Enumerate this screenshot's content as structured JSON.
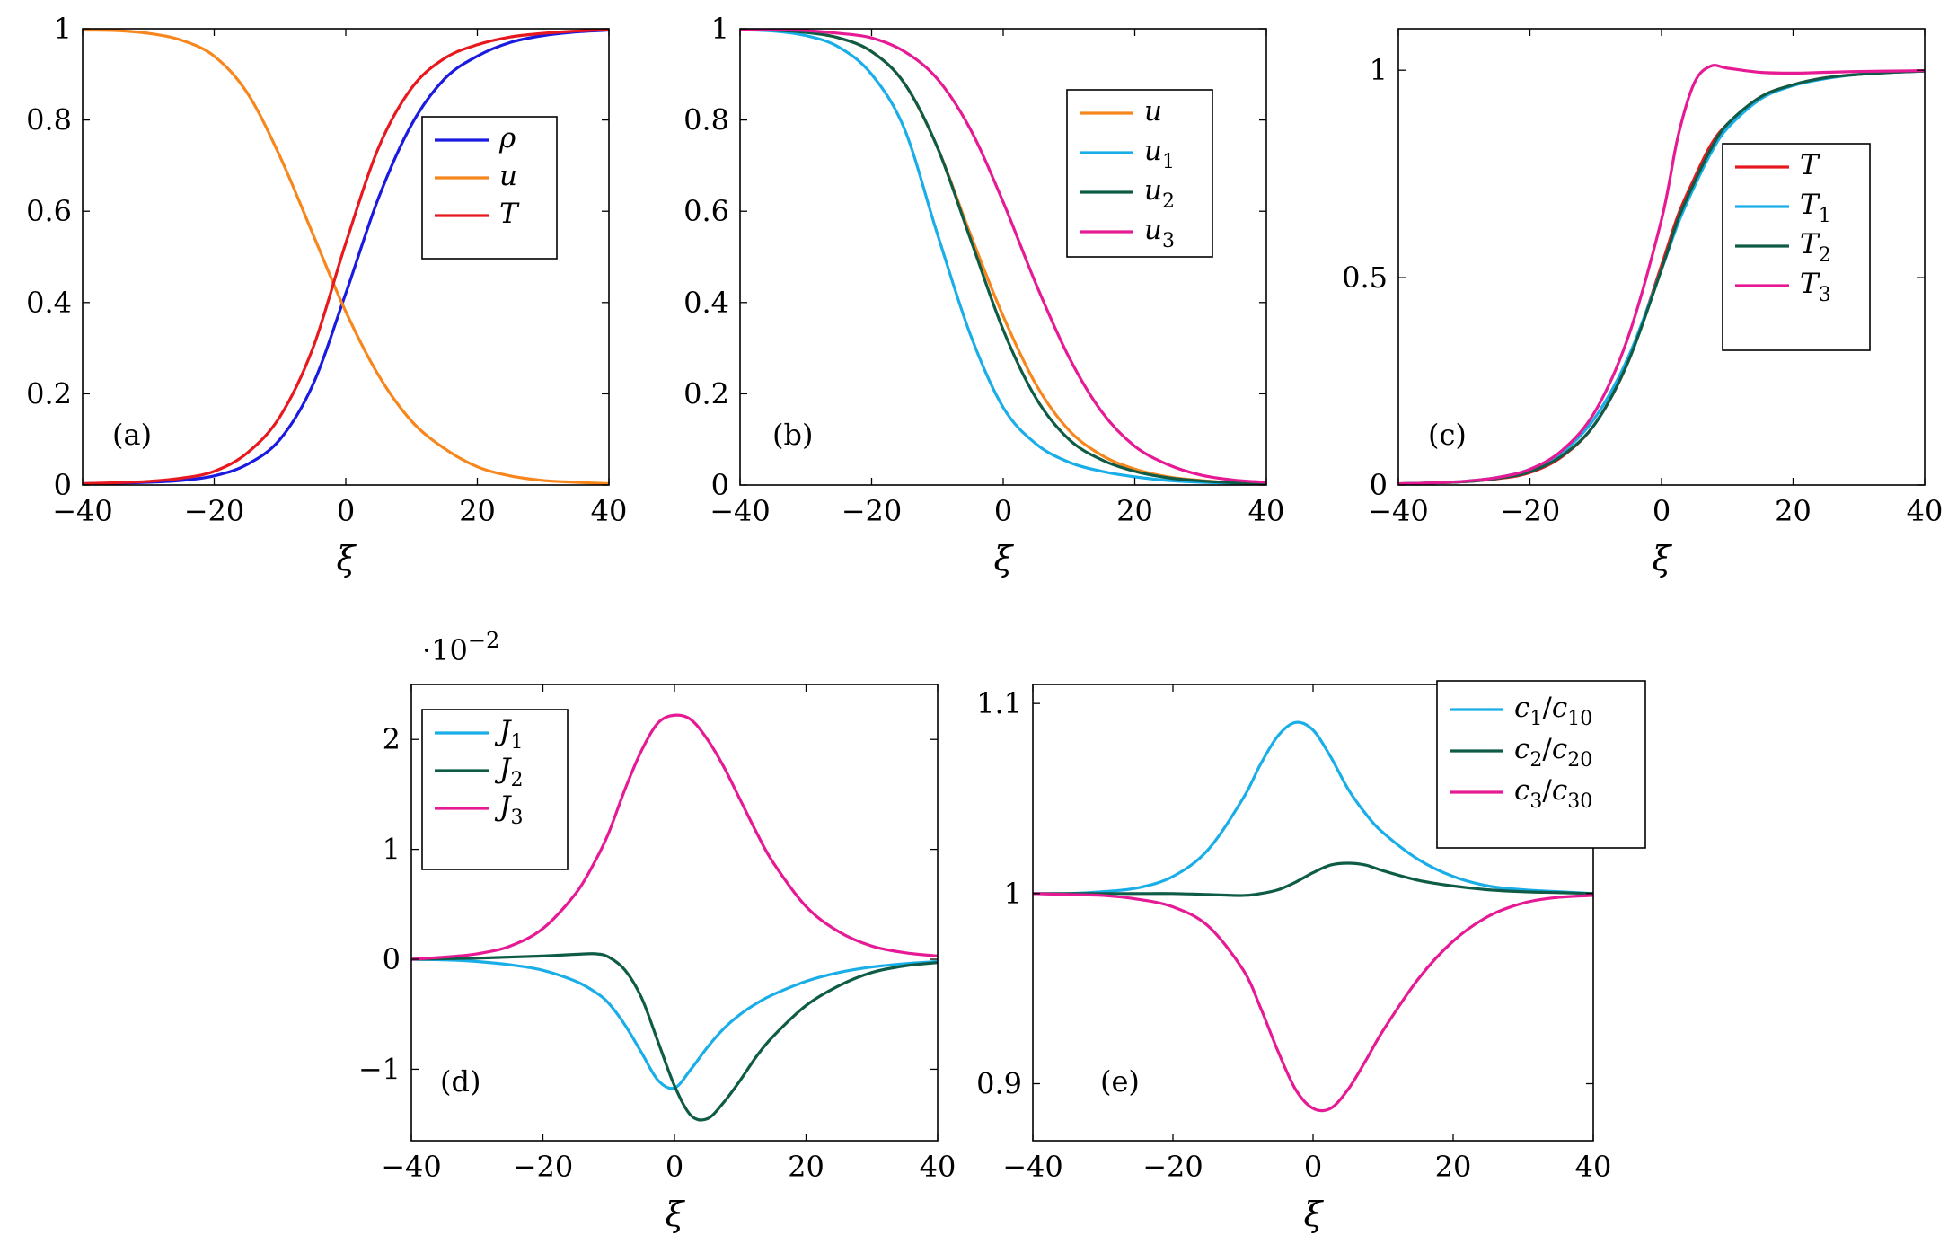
{
  "chart_data": [
    {
      "id": "a",
      "type": "line",
      "tag": "(a)",
      "xlabel": "ξ",
      "xlim": [
        -40,
        40
      ],
      "ylim": [
        0,
        1
      ],
      "xticks": [
        -40,
        -20,
        0,
        20,
        40
      ],
      "xtick_labels": [
        "−40",
        "−20",
        "0",
        "20",
        "40"
      ],
      "yticks": [
        0,
        0.2,
        0.4,
        0.6,
        0.8,
        1
      ],
      "ytick_labels": [
        "0",
        "0.2",
        "0.4",
        "0.6",
        "0.8",
        "1"
      ],
      "legend_position": "center-right",
      "x": [
        -40,
        -35,
        -30,
        -25,
        -20,
        -15,
        -10,
        -5,
        0,
        5,
        10,
        15,
        20,
        25,
        30,
        35,
        40
      ],
      "series": [
        {
          "name": "ρ",
          "sub": "",
          "color": "#1a1ae0",
          "values": [
            0.003,
            0.004,
            0.006,
            0.01,
            0.02,
            0.045,
            0.1,
            0.22,
            0.42,
            0.63,
            0.79,
            0.89,
            0.94,
            0.97,
            0.985,
            0.993,
            0.997
          ]
        },
        {
          "name": "u",
          "sub": "",
          "color": "#f7861c",
          "values": [
            0.997,
            0.996,
            0.99,
            0.975,
            0.94,
            0.86,
            0.72,
            0.55,
            0.38,
            0.24,
            0.14,
            0.08,
            0.04,
            0.02,
            0.01,
            0.006,
            0.003
          ]
        },
        {
          "name": "T",
          "sub": "",
          "color": "#e8191e",
          "values": [
            0.003,
            0.005,
            0.008,
            0.015,
            0.03,
            0.07,
            0.15,
            0.3,
            0.53,
            0.74,
            0.87,
            0.935,
            0.965,
            0.982,
            0.99,
            0.995,
            0.998
          ]
        }
      ]
    },
    {
      "id": "b",
      "type": "line",
      "tag": "(b)",
      "xlabel": "ξ",
      "xlim": [
        -40,
        40
      ],
      "ylim": [
        0,
        1
      ],
      "xticks": [
        -40,
        -20,
        0,
        20,
        40
      ],
      "xtick_labels": [
        "−40",
        "−20",
        "0",
        "20",
        "40"
      ],
      "yticks": [
        0,
        0.2,
        0.4,
        0.6,
        0.8,
        1
      ],
      "ytick_labels": [
        "0",
        "0.2",
        "0.4",
        "0.6",
        "0.8",
        "1"
      ],
      "legend_position": "top-right",
      "x": [
        -40,
        -35,
        -30,
        -25,
        -20,
        -15,
        -10,
        -5,
        0,
        5,
        10,
        15,
        20,
        25,
        30,
        35,
        40
      ],
      "series": [
        {
          "name": "u",
          "sub": "",
          "color": "#f7861c",
          "values": [
            0.998,
            0.997,
            0.993,
            0.98,
            0.95,
            0.88,
            0.74,
            0.55,
            0.37,
            0.22,
            0.12,
            0.065,
            0.035,
            0.018,
            0.01,
            0.005,
            0.003
          ]
        },
        {
          "name": "u",
          "sub": "1",
          "color": "#1aaee8",
          "values": [
            0.998,
            0.995,
            0.985,
            0.96,
            0.9,
            0.78,
            0.55,
            0.33,
            0.17,
            0.09,
            0.05,
            0.03,
            0.018,
            0.01,
            0.006,
            0.004,
            0.002
          ]
        },
        {
          "name": "u",
          "sub": "2",
          "color": "#0f5c46",
          "values": [
            0.998,
            0.997,
            0.992,
            0.98,
            0.95,
            0.88,
            0.74,
            0.54,
            0.34,
            0.19,
            0.1,
            0.055,
            0.03,
            0.016,
            0.009,
            0.005,
            0.003
          ]
        },
        {
          "name": "u",
          "sub": "3",
          "color": "#e61a94",
          "values": [
            0.999,
            0.998,
            0.996,
            0.99,
            0.98,
            0.95,
            0.89,
            0.78,
            0.62,
            0.44,
            0.28,
            0.16,
            0.085,
            0.045,
            0.022,
            0.011,
            0.006
          ]
        }
      ]
    },
    {
      "id": "c",
      "type": "line",
      "tag": "(c)",
      "xlabel": "ξ",
      "xlim": [
        -40,
        40
      ],
      "ylim": [
        0,
        1.1
      ],
      "xticks": [
        -40,
        -20,
        0,
        20,
        40
      ],
      "xtick_labels": [
        "−40",
        "−20",
        "0",
        "20",
        "40"
      ],
      "yticks": [
        0,
        0.5,
        1
      ],
      "ytick_labels": [
        "0",
        "0.5",
        "1"
      ],
      "legend_position": "center-right",
      "x": [
        -40,
        -35,
        -30,
        -25,
        -20,
        -15,
        -10,
        -5,
        0,
        2.5,
        5,
        7.5,
        10,
        15,
        20,
        25,
        30,
        35,
        40
      ],
      "series": [
        {
          "name": "T",
          "sub": "",
          "color": "#e8191e",
          "values": [
            0.003,
            0.005,
            0.008,
            0.015,
            0.03,
            0.07,
            0.15,
            0.3,
            0.53,
            0.65,
            0.74,
            0.82,
            0.87,
            0.935,
            0.965,
            0.982,
            0.99,
            0.995,
            0.998
          ]
        },
        {
          "name": "T",
          "sub": "1",
          "color": "#1aaee8",
          "values": [
            0.003,
            0.005,
            0.009,
            0.018,
            0.038,
            0.08,
            0.165,
            0.31,
            0.52,
            0.63,
            0.72,
            0.8,
            0.86,
            0.93,
            0.963,
            0.98,
            0.99,
            0.995,
            0.998
          ]
        },
        {
          "name": "T",
          "sub": "2",
          "color": "#0f5c46",
          "values": [
            0.003,
            0.005,
            0.008,
            0.016,
            0.032,
            0.072,
            0.15,
            0.3,
            0.52,
            0.64,
            0.73,
            0.81,
            0.87,
            0.935,
            0.965,
            0.982,
            0.99,
            0.995,
            0.998
          ]
        },
        {
          "name": "T",
          "sub": "3",
          "color": "#e61a94",
          "values": [
            0.003,
            0.005,
            0.009,
            0.018,
            0.038,
            0.085,
            0.18,
            0.36,
            0.64,
            0.84,
            0.97,
            1.01,
            1.005,
            0.995,
            0.993,
            0.995,
            0.997,
            0.998,
            0.999
          ]
        }
      ]
    },
    {
      "id": "d",
      "type": "line",
      "tag": "(d)",
      "xlabel": "ξ",
      "exponent_label": "·10",
      "exponent_power": "−2",
      "xlim": [
        -40,
        40
      ],
      "ylim": [
        -1.65,
        2.5
      ],
      "xticks": [
        -40,
        -20,
        0,
        20,
        40
      ],
      "xtick_labels": [
        "−40",
        "−20",
        "0",
        "20",
        "40"
      ],
      "yticks": [
        -1,
        0,
        1,
        2
      ],
      "ytick_labels": [
        "−1",
        "0",
        "1",
        "2"
      ],
      "legend_position": "top-left",
      "x": [
        -40,
        -35,
        -30,
        -25,
        -20,
        -15,
        -12,
        -10,
        -7.5,
        -5,
        -2.5,
        0,
        2.5,
        5,
        7.5,
        10,
        12.5,
        15,
        20,
        25,
        30,
        35,
        40
      ],
      "series": [
        {
          "name": "J",
          "sub": "1",
          "color": "#1aaee8",
          "values": [
            0,
            -0.005,
            -0.02,
            -0.05,
            -0.1,
            -0.2,
            -0.3,
            -0.4,
            -0.6,
            -0.85,
            -1.1,
            -1.17,
            -1.0,
            -0.8,
            -0.63,
            -0.5,
            -0.4,
            -0.32,
            -0.2,
            -0.12,
            -0.07,
            -0.04,
            -0.02
          ]
        },
        {
          "name": "J",
          "sub": "2",
          "color": "#0f5c46",
          "values": [
            0,
            0.005,
            0.01,
            0.02,
            0.03,
            0.045,
            0.05,
            0.02,
            -0.1,
            -0.35,
            -0.75,
            -1.15,
            -1.42,
            -1.45,
            -1.3,
            -1.1,
            -0.88,
            -0.7,
            -0.42,
            -0.24,
            -0.12,
            -0.06,
            -0.03
          ]
        },
        {
          "name": "J",
          "sub": "3",
          "color": "#e61a94",
          "values": [
            0,
            0.02,
            0.05,
            0.12,
            0.28,
            0.6,
            0.9,
            1.15,
            1.55,
            1.9,
            2.15,
            2.22,
            2.18,
            2.0,
            1.75,
            1.45,
            1.15,
            0.88,
            0.48,
            0.25,
            0.12,
            0.06,
            0.03
          ]
        }
      ]
    },
    {
      "id": "e",
      "type": "line",
      "tag": "(e)",
      "xlabel": "ξ",
      "xlim": [
        -40,
        40
      ],
      "ylim": [
        0.87,
        1.11
      ],
      "xticks": [
        -40,
        -20,
        0,
        20,
        40
      ],
      "xtick_labels": [
        "−40",
        "−20",
        "0",
        "20",
        "40"
      ],
      "yticks": [
        0.9,
        1,
        1.1
      ],
      "ytick_labels": [
        "0.9",
        "1",
        "1.1"
      ],
      "legend_position": "top-right",
      "x": [
        -40,
        -35,
        -30,
        -25,
        -20,
        -15,
        -10,
        -7.5,
        -5,
        -2.5,
        0,
        2.5,
        5,
        7.5,
        10,
        15,
        20,
        25,
        30,
        35,
        40
      ],
      "series": [
        {
          "name": "c",
          "sub": "1",
          "den": "c",
          "densub": "10",
          "color": "#1aaee8",
          "values": [
            1.0,
            1.0,
            1.001,
            1.003,
            1.009,
            1.023,
            1.05,
            1.068,
            1.083,
            1.09,
            1.086,
            1.072,
            1.055,
            1.042,
            1.032,
            1.018,
            1.009,
            1.004,
            1.002,
            1.001,
            1.0
          ]
        },
        {
          "name": "c",
          "sub": "2",
          "den": "c",
          "densub": "20",
          "color": "#0f5c46",
          "values": [
            1.0,
            1.0,
            1.0,
            1.0,
            1.0,
            0.9995,
            0.999,
            1.0,
            1.002,
            1.006,
            1.011,
            1.015,
            1.016,
            1.015,
            1.012,
            1.007,
            1.004,
            1.002,
            1.001,
            1.0005,
            1.0
          ]
        },
        {
          "name": "c",
          "sub": "3",
          "den": "c",
          "densub": "30",
          "color": "#e61a94",
          "values": [
            1.0,
            0.9995,
            0.999,
            0.997,
            0.993,
            0.983,
            0.96,
            0.94,
            0.917,
            0.897,
            0.887,
            0.887,
            0.897,
            0.912,
            0.928,
            0.955,
            0.975,
            0.988,
            0.995,
            0.998,
            0.999
          ]
        }
      ]
    }
  ]
}
